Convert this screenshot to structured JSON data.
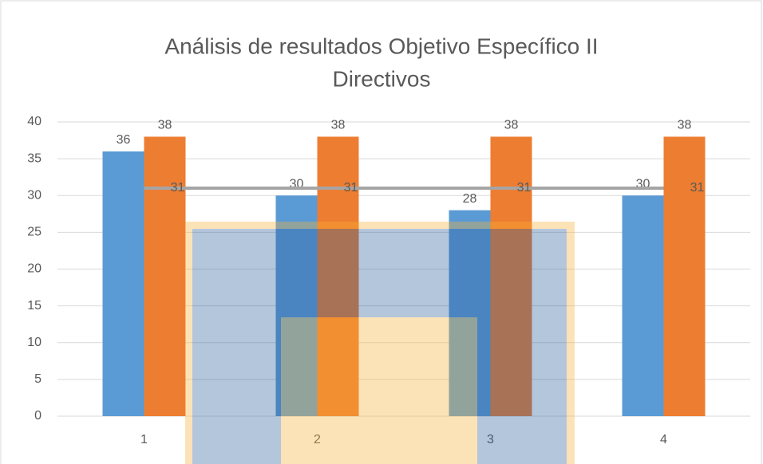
{
  "chart_data": {
    "type": "bar",
    "title": [
      "Análisis de resultados Objetivo Específico II",
      "Directivos"
    ],
    "categories": [
      "1",
      "2",
      "3",
      "4"
    ],
    "series": [
      {
        "type": "bar",
        "color": "#5b9bd5",
        "values": [
          36,
          30,
          28,
          30
        ]
      },
      {
        "type": "bar",
        "color": "#ed7d31",
        "values": [
          38,
          38,
          38,
          38
        ]
      },
      {
        "type": "line",
        "color": "#a5a5a5",
        "values": [
          31,
          31,
          31,
          31
        ]
      }
    ],
    "ylim": [
      0,
      40
    ],
    "yticks": [
      0,
      5,
      10,
      15,
      20,
      25,
      30,
      35,
      40
    ],
    "grid": true
  }
}
